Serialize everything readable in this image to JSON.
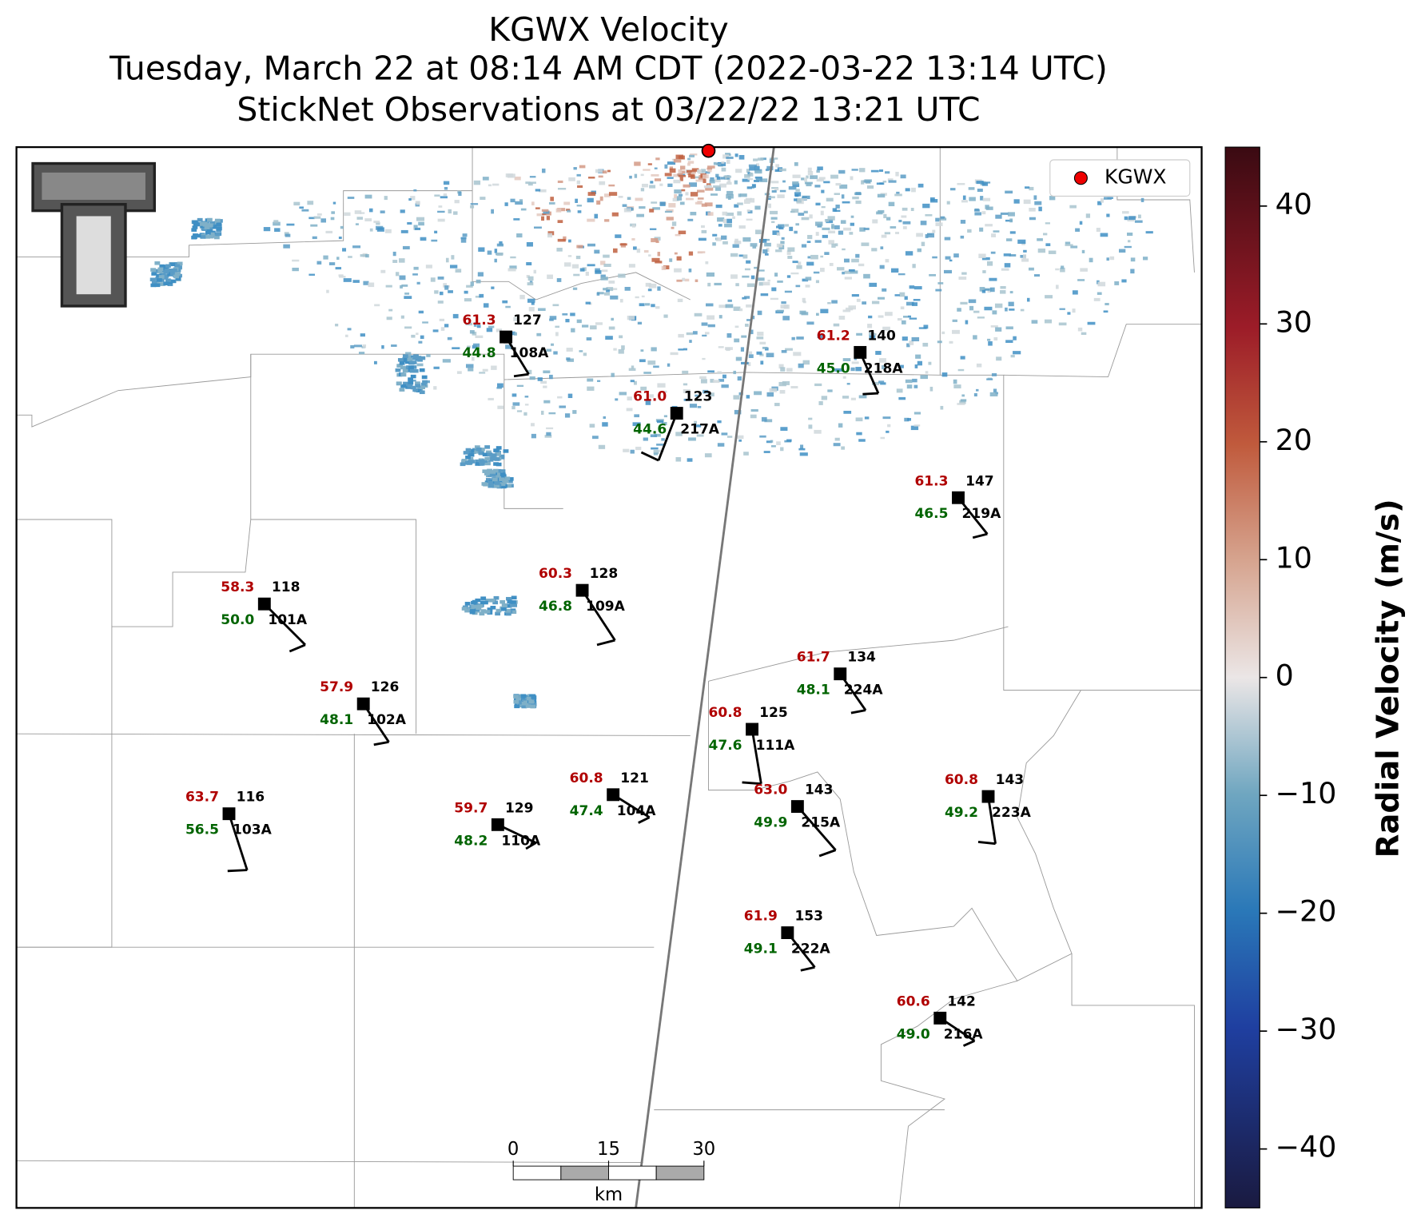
{
  "header": {
    "title": "KGWX Velocity",
    "subtitle": "Tuesday, March 22 at 08:14 AM CDT (2022-03-22 13:14 UTC)",
    "observations": "StickNet Observations at 03/22/22 13:21 UTC"
  },
  "stations": [
    {
      "id": "108A",
      "temperature": "61.3",
      "dewpoint": "44.8",
      "value": "127"
    },
    {
      "id": "218A",
      "temperature": "61.2",
      "dewpoint": "45.0",
      "value": "140"
    },
    {
      "id": "217A",
      "temperature": "61.0",
      "dewpoint": "44.6",
      "value": "123"
    },
    {
      "id": "219A",
      "temperature": "61.3",
      "dewpoint": "46.5",
      "value": "147"
    },
    {
      "id": "101A",
      "temperature": "58.3",
      "dewpoint": "50.0",
      "value": "118"
    },
    {
      "id": "109A",
      "temperature": "60.3",
      "dewpoint": "46.8",
      "value": "128"
    },
    {
      "id": "224A",
      "temperature": "61.7",
      "dewpoint": "48.1",
      "value": "134"
    },
    {
      "id": "102A",
      "temperature": "57.9",
      "dewpoint": "48.1",
      "value": "126"
    },
    {
      "id": "111A",
      "temperature": "60.8",
      "dewpoint": "47.6",
      "value": "125"
    },
    {
      "id": "104A",
      "temperature": "60.8",
      "dewpoint": "47.4",
      "value": "121"
    },
    {
      "id": "215A",
      "temperature": "63.0",
      "dewpoint": "49.9",
      "value": "143"
    },
    {
      "id": "223A",
      "temperature": "60.8",
      "dewpoint": "49.2",
      "value": "143"
    },
    {
      "id": "103A",
      "temperature": "63.7",
      "dewpoint": "56.5",
      "value": "116"
    },
    {
      "id": "110A",
      "temperature": "59.7",
      "dewpoint": "48.2",
      "value": "129"
    },
    {
      "id": "222A",
      "temperature": "61.9",
      "dewpoint": "49.1",
      "value": "153"
    },
    {
      "id": "216A",
      "temperature": "60.6",
      "dewpoint": "49.0",
      "value": "142"
    }
  ],
  "legend": {
    "label": "KGWX"
  },
  "colorbar": {
    "label": "Radial Velocity (m/s)",
    "lim": [
      -45,
      45
    ],
    "ticks": [
      40,
      30,
      20,
      10,
      0,
      {
        "value": -10,
        "label": "−10"
      },
      {
        "value": -20,
        "label": "−20"
      },
      {
        "value": -30,
        "label": "−30"
      },
      {
        "value": -40,
        "label": "−40"
      }
    ]
  },
  "scale_bar": {
    "ticks": [
      0,
      15,
      30
    ],
    "unit": "km"
  }
}
